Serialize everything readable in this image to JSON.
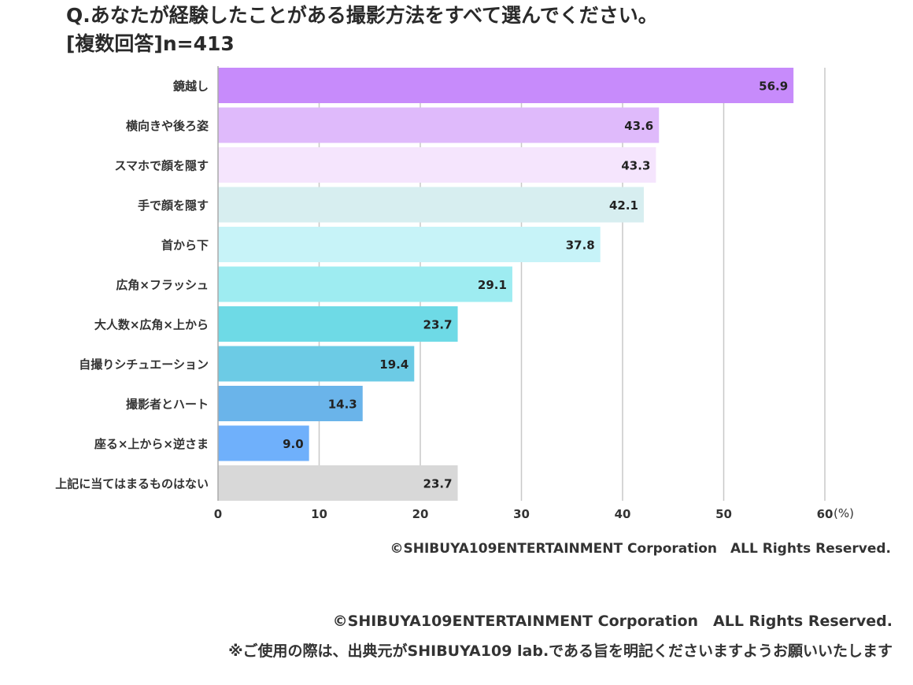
{
  "header": {
    "question": "Q.あなたが経験したことがある撮影方法をすべて選んでください。",
    "subtitle": "[複数回答]n=413"
  },
  "chart_data": {
    "type": "bar",
    "orientation": "horizontal",
    "categories": [
      "鏡越し",
      "横向きや後ろ姿",
      "スマホで顔を隠す",
      "手で顔を隠す",
      "首から下",
      "広角×フラッシュ",
      "大人数×広角×上から",
      "自撮りシチュエーション",
      "撮影者とハート",
      "座る×上から×逆さま",
      "上記に当てはまるものはない"
    ],
    "values": [
      56.9,
      43.6,
      43.3,
      42.1,
      37.8,
      29.1,
      23.7,
      19.4,
      14.3,
      9.0,
      23.7
    ],
    "value_labels": [
      "56.9",
      "43.6",
      "43.3",
      "42.1",
      "37.8",
      "29.1",
      "23.7",
      "19.4",
      "14.3",
      "9.0",
      "23.7"
    ],
    "colors": [
      "#c78bfb",
      "#dfbafb",
      "#f5e5fd",
      "#d7eef0",
      "#c7f3f8",
      "#9eecf1",
      "#6edae6",
      "#6ccbe5",
      "#6ab4ea",
      "#6fb0fb",
      "#d8d8d8"
    ],
    "xticks": [
      "0",
      "10",
      "20",
      "30",
      "40",
      "50",
      "60"
    ],
    "xunit": "(%)",
    "xlim": [
      0,
      60
    ],
    "grid": true
  },
  "copyright_inner": "©SHIBUYA109ENTERTAINMENT Corporation　ALL Rights Reserved.",
  "footer": {
    "copyright": "©SHIBUYA109ENTERTAINMENT Corporation　ALL Rights Reserved.",
    "note": "※ご使用の際は、出典元がSHIBUYA109 lab.である旨を明記くださいますようお願いいたします"
  }
}
